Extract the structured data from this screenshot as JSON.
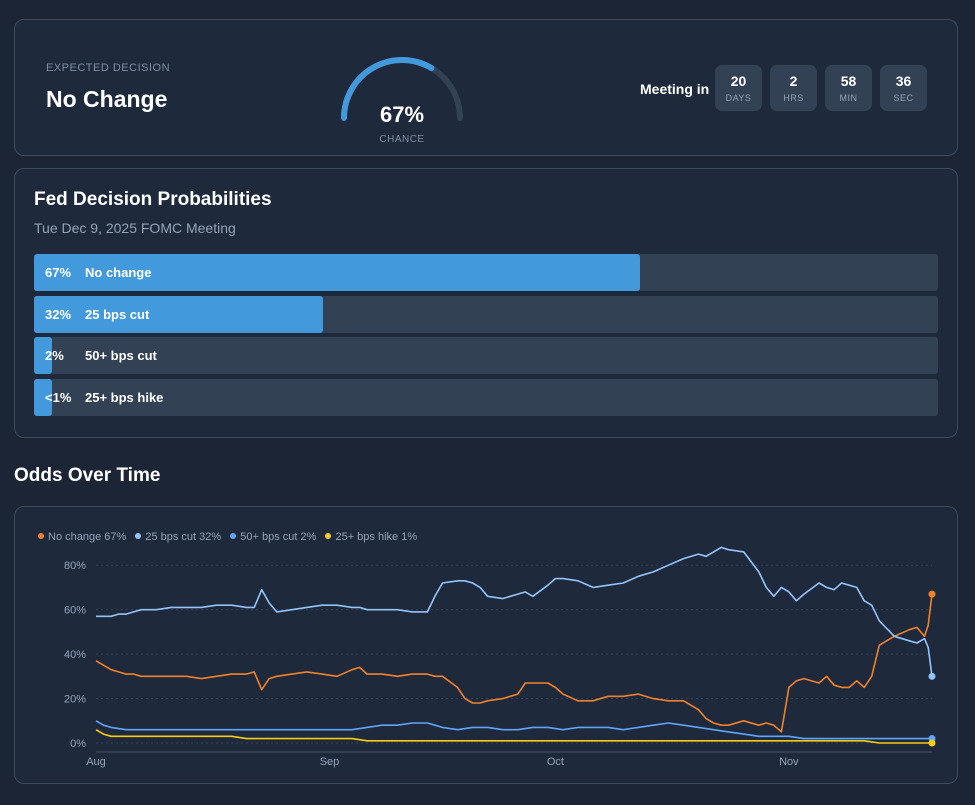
{
  "summary": {
    "expected_label": "EXPECTED DECISION",
    "decision": "No Change",
    "gauge_pct": "67%",
    "gauge_value": 0.67,
    "gauge_sub": "CHANCE",
    "meeting_in_label": "Meeting in",
    "countdown": [
      {
        "num": "20",
        "unit": "DAYS"
      },
      {
        "num": "2",
        "unit": "HRS"
      },
      {
        "num": "58",
        "unit": "MIN"
      },
      {
        "num": "36",
        "unit": "SEC"
      }
    ]
  },
  "probabilities": {
    "title": "Fed Decision Probabilities",
    "subtitle": "Tue Dec 9, 2025 FOMC Meeting",
    "rows": [
      {
        "pct": "67%",
        "label": "No change",
        "value": 67
      },
      {
        "pct": "32%",
        "label": "25 bps cut",
        "value": 32
      },
      {
        "pct": "2%",
        "label": "50+ bps cut",
        "value": 2
      },
      {
        "pct": "<1%",
        "label": "25+ bps hike",
        "value": 1
      }
    ]
  },
  "odds": {
    "title": "Odds Over Time"
  },
  "chart_data": {
    "type": "line",
    "xlabel": "",
    "ylabel": "",
    "ylim": [
      0,
      90
    ],
    "yticks": [
      "0%",
      "20%",
      "40%",
      "60%",
      "80%"
    ],
    "xticks": [
      {
        "label": "Aug",
        "day": 0
      },
      {
        "label": "Sep",
        "day": 31
      },
      {
        "label": "Oct",
        "day": 61
      },
      {
        "label": "Nov",
        "day": 92
      }
    ],
    "xlim": [
      0,
      111
    ],
    "grid": true,
    "legend_position": "top-left",
    "series": [
      {
        "name": "No change 67%",
        "color": "#f0822c",
        "x": [
          0,
          1,
          2,
          3,
          4,
          5,
          6,
          8,
          10,
          12,
          14,
          16,
          18,
          20,
          21,
          22,
          23,
          24,
          26,
          28,
          30,
          32,
          34,
          35,
          36,
          38,
          40,
          42,
          44,
          45,
          46,
          48,
          49,
          50,
          51,
          52,
          54,
          56,
          57,
          58,
          60,
          61,
          62,
          64,
          66,
          68,
          70,
          72,
          74,
          76,
          78,
          80,
          81,
          82,
          83,
          84,
          86,
          88,
          89,
          90,
          91,
          92,
          93,
          94,
          96,
          97,
          98,
          99,
          100,
          101,
          102,
          103,
          104,
          106,
          108,
          109,
          110,
          110.5,
          111
        ],
        "y": [
          37,
          35,
          33,
          32,
          31,
          31,
          30,
          30,
          30,
          30,
          29,
          30,
          31,
          31,
          32,
          24,
          29,
          30,
          31,
          32,
          31,
          30,
          33,
          34,
          31,
          31,
          30,
          31,
          31,
          30,
          30,
          25,
          20,
          18,
          18,
          19,
          20,
          22,
          27,
          27,
          27,
          25,
          22,
          19,
          19,
          21,
          21,
          22,
          20,
          19,
          19,
          15,
          11,
          9,
          8,
          8,
          10,
          8,
          9,
          8,
          5,
          25,
          28,
          29,
          27,
          30,
          26,
          25,
          25,
          28,
          25,
          30,
          44,
          48,
          51,
          52,
          48,
          53,
          67
        ]
      },
      {
        "name": "25 bps cut 32%",
        "color": "#93c5fd",
        "x": [
          0,
          1,
          2,
          3,
          4,
          5,
          6,
          8,
          10,
          12,
          14,
          16,
          18,
          20,
          21,
          22,
          23,
          24,
          26,
          28,
          30,
          32,
          34,
          35,
          36,
          38,
          40,
          42,
          44,
          45,
          46,
          48,
          49,
          50,
          51,
          52,
          54,
          56,
          57,
          58,
          60,
          61,
          62,
          64,
          66,
          68,
          70,
          72,
          74,
          76,
          78,
          80,
          81,
          82,
          83,
          84,
          86,
          88,
          89,
          90,
          91,
          92,
          93,
          94,
          96,
          97,
          98,
          99,
          100,
          101,
          102,
          103,
          104,
          106,
          108,
          109,
          110,
          110.5,
          111
        ],
        "y": [
          57,
          57,
          57,
          58,
          58,
          59,
          60,
          60,
          61,
          61,
          61,
          62,
          62,
          61,
          61,
          69,
          63,
          59,
          60,
          61,
          62,
          62,
          61,
          61,
          60,
          60,
          60,
          59,
          59,
          66,
          72,
          73,
          73,
          72,
          70,
          66,
          65,
          67,
          68,
          66,
          71,
          74,
          74,
          73,
          70,
          71,
          72,
          75,
          77,
          80,
          83,
          85,
          84,
          86,
          88,
          87,
          86,
          77,
          70,
          66,
          70,
          68,
          64,
          67,
          72,
          70,
          69,
          72,
          71,
          70,
          64,
          62,
          55,
          48,
          46,
          45,
          47,
          43,
          30
        ]
      },
      {
        "name": "50+ bps cut 2%",
        "color": "#60a5fa",
        "x": [
          0,
          1,
          2,
          4,
          6,
          8,
          10,
          12,
          14,
          16,
          18,
          20,
          22,
          24,
          26,
          28,
          30,
          32,
          34,
          36,
          38,
          40,
          42,
          44,
          45,
          46,
          48,
          50,
          52,
          54,
          56,
          58,
          60,
          62,
          64,
          66,
          68,
          70,
          72,
          74,
          76,
          78,
          80,
          82,
          84,
          86,
          88,
          90,
          92,
          94,
          96,
          98,
          100,
          102,
          104,
          106,
          108,
          110,
          111
        ],
        "y": [
          10,
          8,
          7,
          6,
          6,
          6,
          6,
          6,
          6,
          6,
          6,
          6,
          6,
          6,
          6,
          6,
          6,
          6,
          6,
          7,
          8,
          8,
          9,
          9,
          8,
          7,
          6,
          7,
          7,
          6,
          6,
          7,
          7,
          6,
          7,
          7,
          7,
          6,
          7,
          8,
          9,
          8,
          7,
          6,
          5,
          4,
          3,
          3,
          3,
          2,
          2,
          2,
          2,
          2,
          2,
          2,
          2,
          2,
          2
        ]
      },
      {
        "name": "25+ bps hike 1%",
        "color": "#facc15",
        "x": [
          0,
          1,
          2,
          4,
          6,
          8,
          10,
          12,
          14,
          16,
          18,
          20,
          22,
          24,
          26,
          28,
          30,
          32,
          34,
          36,
          38,
          40,
          42,
          44,
          46,
          48,
          50,
          52,
          54,
          56,
          58,
          60,
          62,
          64,
          66,
          68,
          70,
          72,
          74,
          76,
          78,
          80,
          82,
          84,
          86,
          88,
          90,
          92,
          94,
          96,
          98,
          100,
          102,
          104,
          106,
          108,
          110,
          111
        ],
        "y": [
          6,
          4,
          3,
          3,
          3,
          3,
          3,
          3,
          3,
          3,
          3,
          2,
          2,
          2,
          2,
          2,
          2,
          2,
          2,
          1,
          1,
          1,
          1,
          1,
          1,
          1,
          1,
          1,
          1,
          1,
          1,
          1,
          1,
          1,
          1,
          1,
          1,
          1,
          1,
          1,
          1,
          1,
          1,
          1,
          1,
          1,
          1,
          1,
          1,
          1,
          1,
          1,
          1,
          0,
          0,
          0,
          0,
          0
        ]
      }
    ]
  }
}
